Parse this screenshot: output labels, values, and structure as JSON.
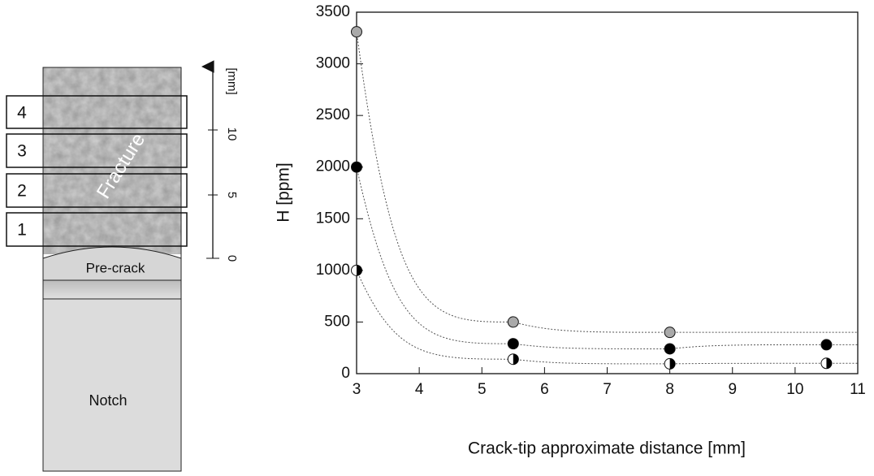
{
  "chart_data": {
    "type": "scatter",
    "xlabel": "Crack-tip approximate distance [mm]",
    "ylabel": "H [ppm]",
    "x": [
      3,
      5.5,
      8,
      10.5
    ],
    "series": [
      {
        "color": "#a9a9a9",
        "marker": "filled",
        "values": [
          3310,
          500,
          400,
          null
        ]
      },
      {
        "color": "#000000",
        "marker": "filled",
        "values": [
          2000,
          290,
          240,
          280
        ]
      },
      {
        "color": "#000000",
        "marker": "half",
        "values": [
          1000,
          140,
          95,
          100
        ]
      }
    ],
    "xlim": [
      3,
      11
    ],
    "xticks": [
      3,
      4,
      5,
      6,
      7,
      8,
      9,
      10,
      11
    ],
    "ylim": [
      0,
      3500
    ],
    "yticks": [
      0,
      500,
      1000,
      1500,
      2000,
      2500,
      3000,
      3500
    ]
  },
  "diagram": {
    "boxes": [
      "4",
      "3",
      "2",
      "1"
    ],
    "fracture": "Fracture",
    "precrack": "Pre-crack",
    "notch": "Notch",
    "scale_unit": "[mm]",
    "scale_ticks": [
      "0",
      "5",
      "10"
    ]
  }
}
